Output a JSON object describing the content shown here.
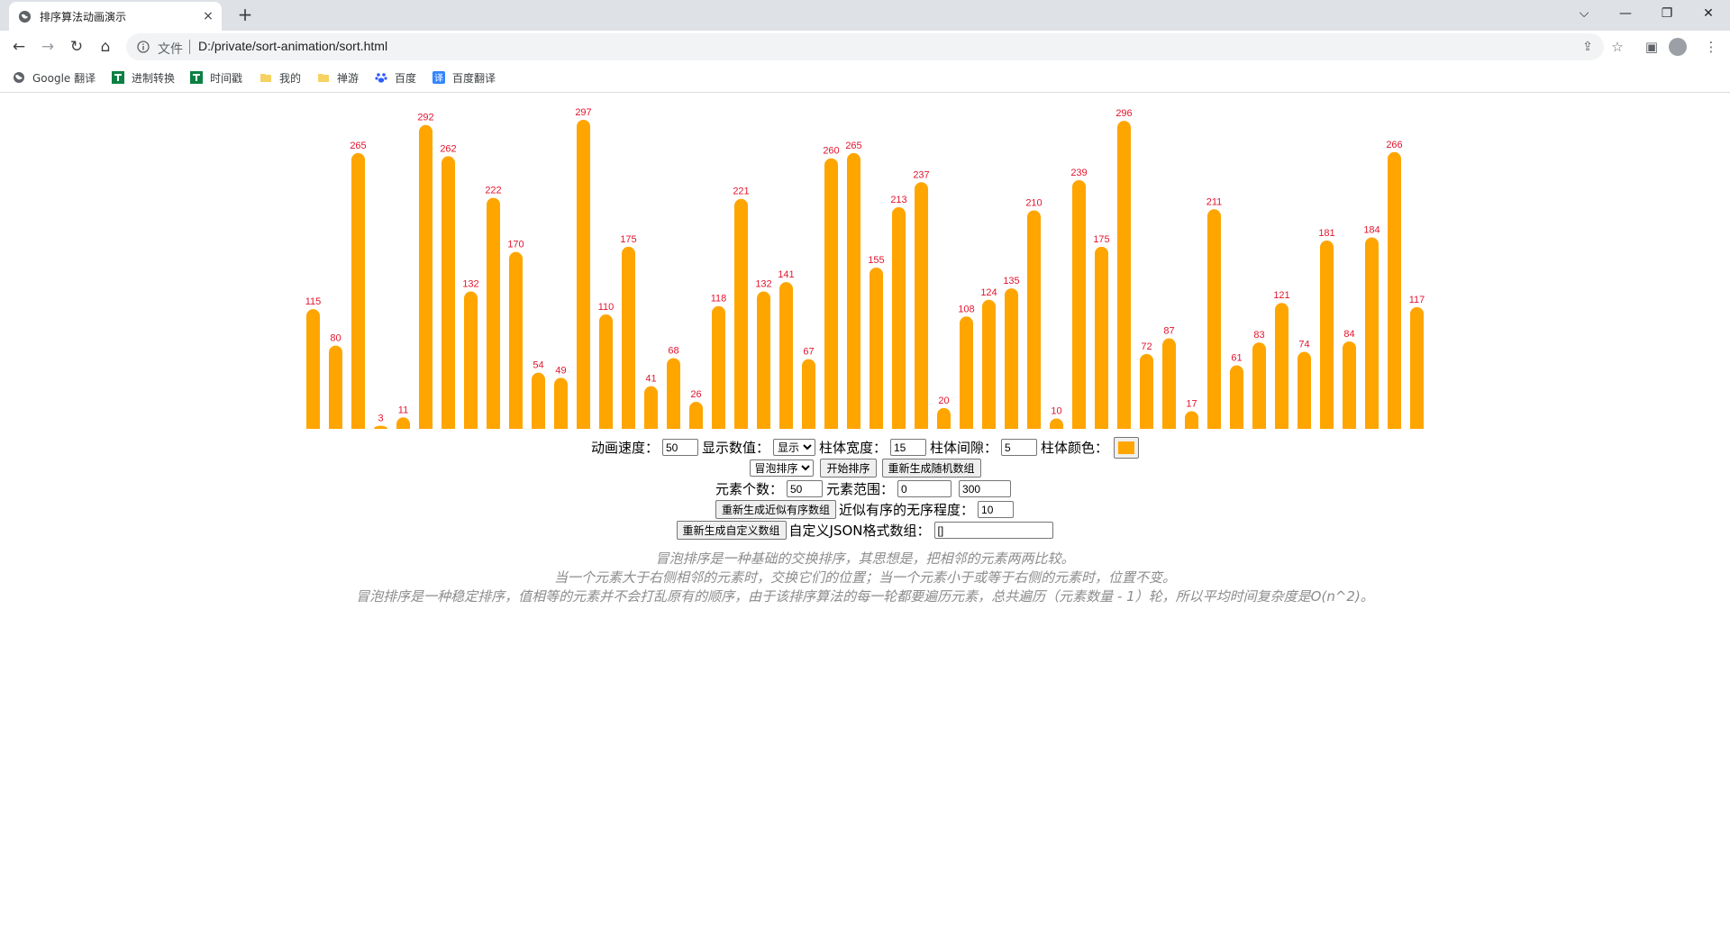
{
  "browser": {
    "tab_title": "排序算法动画演示",
    "tab_close": "×",
    "new_tab": "+",
    "window_controls": {
      "dropdown": "⌵",
      "minimize": "—",
      "restore": "❐",
      "close": "✕"
    },
    "omnibox": {
      "site_info_label": "文件",
      "url": "D:/private/sort-animation/sort.html"
    },
    "bookmarks": [
      {
        "label": "Google 翻译",
        "icon": "globe-icon",
        "color": "#5f6368"
      },
      {
        "label": "进制转换",
        "icon": "tool-icon",
        "color": "#0b8043"
      },
      {
        "label": "时间戳",
        "icon": "tool-icon",
        "color": "#0b8043"
      },
      {
        "label": "我的",
        "icon": "folder-icon",
        "color": "#f6d262"
      },
      {
        "label": "禅游",
        "icon": "folder-icon",
        "color": "#f6d262"
      },
      {
        "label": "百度",
        "icon": "baidu-paw-icon",
        "color": "#2e5bff"
      },
      {
        "label": "百度翻译",
        "icon": "translate-icon",
        "color": "#3385ff"
      }
    ]
  },
  "chart_data": {
    "type": "bar",
    "values": [
      115,
      80,
      265,
      3,
      11,
      292,
      262,
      132,
      222,
      170,
      54,
      49,
      297,
      110,
      175,
      41,
      68,
      26,
      118,
      221,
      132,
      141,
      67,
      260,
      265,
      155,
      213,
      237,
      20,
      108,
      124,
      135,
      210,
      10,
      239,
      175,
      296,
      72,
      87,
      17,
      211,
      61,
      83,
      121,
      74,
      181,
      84,
      184,
      266,
      117
    ],
    "bar_color": "#FFA500",
    "label_color": "#e4142e",
    "show_labels": true
  },
  "controls": {
    "speed_label": "动画速度：",
    "speed_value": "50",
    "show_values_label": "显示数值：",
    "show_values_option": "显示",
    "bar_width_label": "柱体宽度：",
    "bar_width_value": "15",
    "bar_gap_label": "柱体间隙：",
    "bar_gap_value": "5",
    "bar_color_label": "柱体颜色：",
    "bar_color_value": "#FFA500",
    "algorithm_option": "冒泡排序",
    "start_button": "开始排序",
    "regen_random_button": "重新生成随机数组",
    "count_label": "元素个数：",
    "count_value": "50",
    "range_label": "元素范围：",
    "range_min": "0",
    "range_max": "300",
    "regen_nearly_sorted_button": "重新生成近似有序数组",
    "disorder_label": "近似有序的无序程度：",
    "disorder_value": "10",
    "regen_custom_button": "重新生成自定义数组",
    "custom_json_label": "自定义JSON格式数组：",
    "custom_json_value": "[]"
  },
  "description": {
    "line1": "冒泡排序是一种基础的交换排序，其思想是，把相邻的元素两两比较。",
    "line2": "当一个元素大于右侧相邻的元素时，交换它们的位置；当一个元素小于或等于右侧的元素时，位置不变。",
    "line3": "冒泡排序是一种稳定排序，值相等的元素并不会打乱原有的顺序，由于该排序算法的每一轮都要遍历元素，总共遍历（元素数量 - 1）轮，所以平均时间复杂度是O(n^2)。"
  }
}
